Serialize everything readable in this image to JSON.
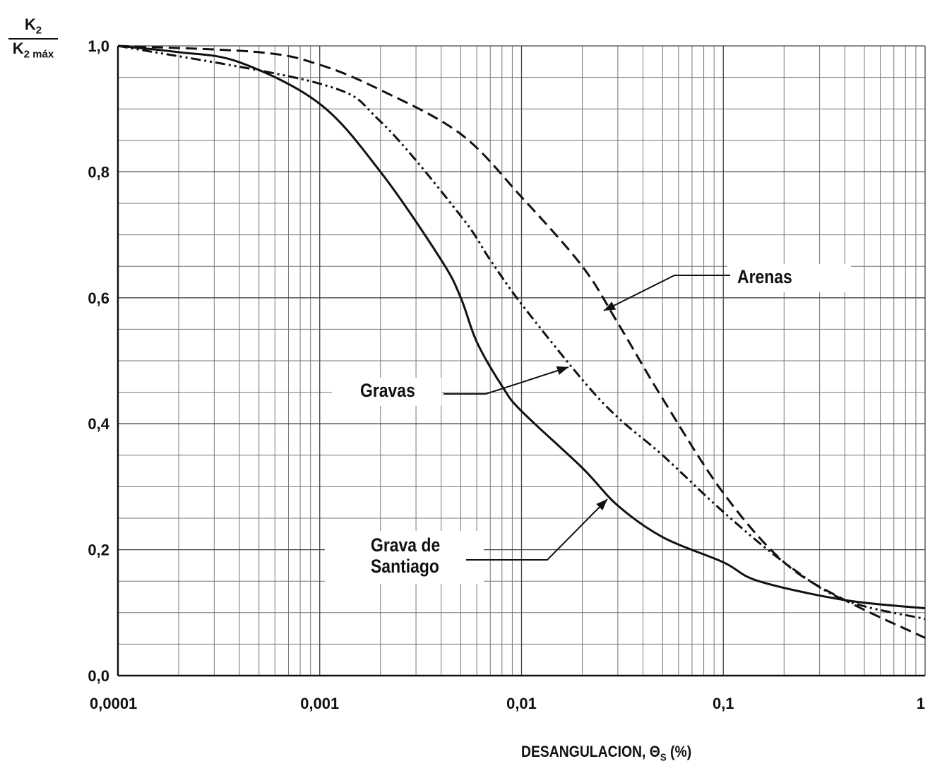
{
  "chart_data": {
    "type": "line",
    "ylabel": {
      "numerator": [
        "K",
        "2"
      ],
      "denominator": [
        "K",
        "2 máx"
      ]
    },
    "xlabel": [
      "DESANGULACION, Θ",
      "S",
      " (%)"
    ],
    "xscale": "log",
    "xlim": [
      0.0001,
      1
    ],
    "xticks": [
      {
        "value": 0.0001,
        "label": "0,0001"
      },
      {
        "value": 0.001,
        "label": "0,001"
      },
      {
        "value": 0.01,
        "label": "0,01"
      },
      {
        "value": 0.1,
        "label": "0,1"
      },
      1
    ],
    "xminor": [
      0.0002,
      0.0003,
      0.0004,
      0.0005,
      0.0006,
      0.0007,
      0.0008,
      0.0009,
      0.002,
      0.003,
      0.004,
      0.005,
      0.006,
      0.007,
      0.008,
      0.009,
      0.02,
      0.03,
      0.04,
      0.05,
      0.06,
      0.07,
      0.08,
      0.09,
      0.2,
      0.3,
      0.4,
      0.5,
      0.6,
      0.7,
      0.8,
      0.9
    ],
    "ylim": [
      0,
      1
    ],
    "yticks": [
      {
        "value": 0,
        "label": "0,0"
      },
      {
        "value": 0.2,
        "label": "0,2"
      },
      {
        "value": 0.4,
        "label": "0,4"
      },
      {
        "value": 0.6,
        "label": "0,6"
      },
      {
        "value": 0.8,
        "label": "0,8"
      },
      {
        "value": 1,
        "label": "1,0"
      }
    ],
    "yminor": [
      0.05,
      0.1,
      0.15,
      0.25,
      0.3,
      0.35,
      0.45,
      0.5,
      0.55,
      0.65,
      0.7,
      0.75,
      0.85,
      0.9,
      0.95
    ],
    "grid": true,
    "series": [
      {
        "name": "Arenas",
        "style": "dashed",
        "color": "#111111",
        "x": [
          0.0001,
          0.0005,
          0.001,
          0.002,
          0.005,
          0.01,
          0.02,
          0.03,
          0.05,
          0.1,
          0.2,
          0.4,
          1
        ],
        "values": [
          1.0,
          0.99,
          0.97,
          0.93,
          0.86,
          0.76,
          0.65,
          0.56,
          0.44,
          0.29,
          0.18,
          0.12,
          0.06
        ]
      },
      {
        "name": "Gravas",
        "style": "dashdotdot",
        "color": "#111111",
        "x": [
          0.0001,
          0.001,
          0.002,
          0.005,
          0.007,
          0.01,
          0.02,
          0.03,
          0.05,
          0.1,
          0.2,
          0.4,
          1
        ],
        "values": [
          1.0,
          0.94,
          0.88,
          0.73,
          0.66,
          0.59,
          0.47,
          0.41,
          0.35,
          0.26,
          0.18,
          0.12,
          0.09
        ]
      },
      {
        "name": "Grava de Santiago",
        "style": "solid",
        "color": "#111111",
        "x": [
          0.0001,
          0.0002,
          0.0004,
          0.001,
          0.002,
          0.004,
          0.005,
          0.006,
          0.008,
          0.01,
          0.02,
          0.03,
          0.05,
          0.1,
          0.15,
          0.4,
          1
        ],
        "values": [
          1.0,
          0.99,
          0.974,
          0.908,
          0.8,
          0.66,
          0.6,
          0.53,
          0.46,
          0.42,
          0.33,
          0.27,
          0.22,
          0.18,
          0.15,
          0.12,
          0.107
        ]
      }
    ]
  }
}
